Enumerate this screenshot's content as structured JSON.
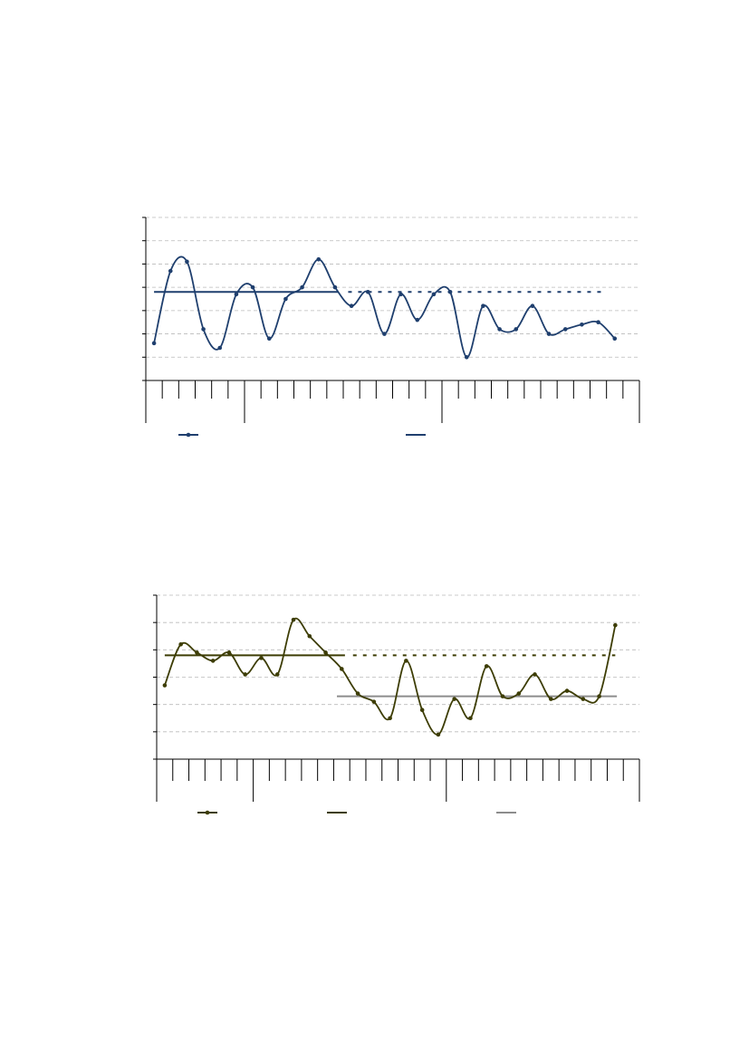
{
  "chart_data": [
    {
      "type": "line",
      "categories": [
        null,
        null,
        null,
        null,
        null,
        null,
        null,
        null,
        null,
        null,
        null,
        null,
        null,
        null,
        null,
        null,
        null,
        null,
        null,
        null,
        null,
        null,
        null,
        null,
        null,
        null,
        null,
        null,
        null,
        null
      ],
      "series": [
        {
          "color": "#1f3f6e",
          "values": [
            1.6,
            4.7,
            5.1,
            2.2,
            1.4,
            3.7,
            4.0,
            1.8,
            3.5,
            4.0,
            5.2,
            4.0,
            3.2,
            3.8,
            2.0,
            3.7,
            2.6,
            3.7,
            3.8,
            1.0,
            3.2,
            2.2,
            2.2,
            3.2,
            2.0,
            2.2,
            2.4,
            2.5,
            1.8,
            null
          ]
        }
      ],
      "reference_lines": [
        {
          "value": 3.8,
          "color": "#1f3f6e"
        }
      ],
      "ylim": [
        0,
        7
      ],
      "yticks": [
        0,
        1,
        2,
        3,
        4,
        5,
        6,
        7
      ],
      "grid": true
    },
    {
      "type": "line",
      "categories": [
        null,
        null,
        null,
        null,
        null,
        null,
        null,
        null,
        null,
        null,
        null,
        null,
        null,
        null,
        null,
        null,
        null,
        null,
        null,
        null,
        null,
        null,
        null,
        null,
        null,
        null,
        null,
        null,
        null,
        null
      ],
      "series": [
        {
          "color": "#3d3d05",
          "values": [
            2.7,
            4.2,
            3.9,
            3.6,
            3.9,
            3.1,
            3.7,
            3.1,
            5.1,
            4.5,
            3.9,
            3.3,
            2.4,
            2.1,
            1.5,
            3.6,
            1.8,
            0.9,
            2.2,
            1.5,
            3.4,
            2.3,
            2.4,
            3.1,
            2.2,
            2.5,
            2.2,
            2.3,
            4.9,
            null
          ]
        }
      ],
      "reference_lines": [
        {
          "value": 3.8,
          "color": "#3d3d05"
        },
        {
          "value": 2.3,
          "color": "#8c8c8c"
        }
      ],
      "ylim": [
        0,
        6
      ],
      "yticks": [
        0,
        1,
        2,
        3,
        4,
        5,
        6
      ],
      "grid": true
    }
  ]
}
